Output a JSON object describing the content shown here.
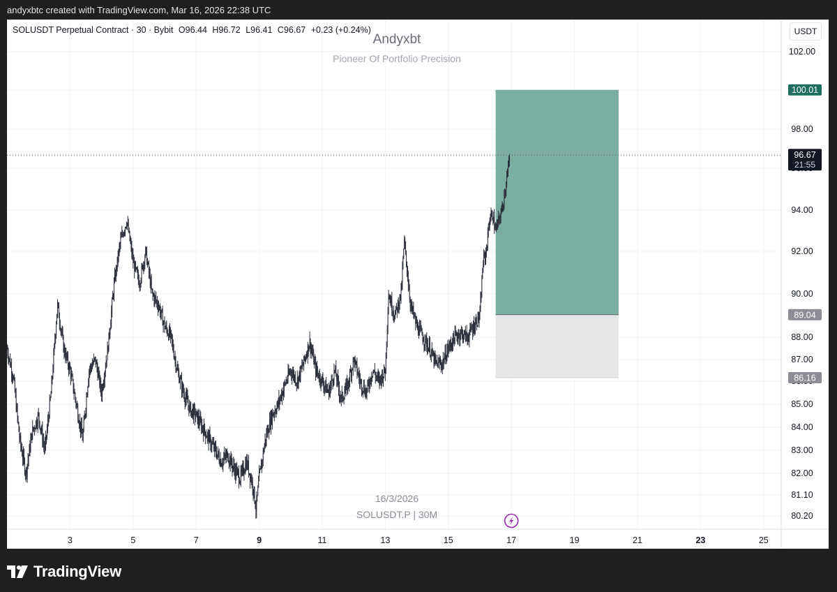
{
  "header": {
    "attribution": "andyxbtc created with TradingView.com, Mar 16, 2026 22:38 UTC"
  },
  "symbol_bar": {
    "symbol": "SOLUSDT Perpetual Contract · 30 · Bybit",
    "open": "O96.44",
    "high": "H96.72",
    "low": "L96.41",
    "close": "C96.67",
    "change": "+0.23 (+0.24%)"
  },
  "currency_button": "USDT",
  "watermark": {
    "title": "Andyxbt",
    "subtitle": "Pioneer Of Portfolio Precision",
    "date": "16/3/2026",
    "symbol_interval": "SOLUSDT.P | 30M"
  },
  "price_labels": {
    "target": "100.01",
    "current": "96.67",
    "countdown": "21:55",
    "entry": "89.04",
    "stop": "86.16"
  },
  "colors": {
    "candles": "#2a2e39",
    "profit_zone": "#7bada1",
    "profit_label": "#1e6e5f",
    "loss_zone": "#e6e6e6",
    "entry_label": "#8c8c94",
    "stop_label": "#8c8c94",
    "current_label": "#131722",
    "flash_icon": "#9c27b0"
  },
  "footer": {
    "brand": "TradingView",
    "logo_icon": "tradingview-logo-icon"
  },
  "chart_data": {
    "type": "candlestick",
    "y_ticks": [
      "80.20",
      "81.10",
      "82.00",
      "83.00",
      "84.00",
      "85.00",
      "86.00",
      "87.00",
      "88.00",
      "90.00",
      "92.00",
      "94.00",
      "96.00",
      "98.00",
      "100.00",
      "102.00"
    ],
    "x_ticks": [
      {
        "label": "3",
        "day": 3,
        "bold": false
      },
      {
        "label": "5",
        "day": 5,
        "bold": false
      },
      {
        "label": "7",
        "day": 7,
        "bold": false
      },
      {
        "label": "9",
        "day": 9,
        "bold": true
      },
      {
        "label": "11",
        "day": 11,
        "bold": false
      },
      {
        "label": "13",
        "day": 13,
        "bold": false
      },
      {
        "label": "15",
        "day": 15,
        "bold": false
      },
      {
        "label": "17",
        "day": 17,
        "bold": false
      },
      {
        "label": "19",
        "day": 19,
        "bold": false
      },
      {
        "label": "21",
        "day": 21,
        "bold": false
      },
      {
        "label": "23",
        "day": 23,
        "bold": true
      },
      {
        "label": "25",
        "day": 25,
        "bold": false
      }
    ],
    "price_path": [
      [
        1.0,
        87.5
      ],
      [
        1.2,
        86.2
      ],
      [
        1.4,
        83.5
      ],
      [
        1.6,
        82.0
      ],
      [
        1.8,
        83.8
      ],
      [
        2.0,
        84.5
      ],
      [
        2.2,
        83.0
      ],
      [
        2.4,
        85.5
      ],
      [
        2.6,
        89.5
      ],
      [
        2.8,
        87.5
      ],
      [
        3.0,
        86.5
      ],
      [
        3.2,
        85.0
      ],
      [
        3.4,
        83.5
      ],
      [
        3.6,
        86.5
      ],
      [
        3.8,
        87.0
      ],
      [
        4.0,
        85.5
      ],
      [
        4.2,
        87.5
      ],
      [
        4.4,
        90.5
      ],
      [
        4.6,
        92.5
      ],
      [
        4.8,
        93.5
      ],
      [
        5.0,
        91.5
      ],
      [
        5.2,
        90.5
      ],
      [
        5.4,
        92.0
      ],
      [
        5.6,
        90.0
      ],
      [
        5.8,
        89.5
      ],
      [
        6.0,
        88.5
      ],
      [
        6.2,
        88.0
      ],
      [
        6.4,
        86.5
      ],
      [
        6.6,
        85.5
      ],
      [
        6.8,
        84.8
      ],
      [
        7.0,
        84.5
      ],
      [
        7.2,
        84.0
      ],
      [
        7.4,
        83.5
      ],
      [
        7.6,
        83.0
      ],
      [
        7.8,
        82.5
      ],
      [
        8.0,
        82.8
      ],
      [
        8.2,
        82.2
      ],
      [
        8.4,
        81.8
      ],
      [
        8.6,
        82.5
      ],
      [
        8.8,
        81.5
      ],
      [
        8.9,
        80.5
      ],
      [
        9.0,
        81.8
      ],
      [
        9.2,
        83.5
      ],
      [
        9.4,
        84.5
      ],
      [
        9.6,
        85.0
      ],
      [
        9.8,
        85.8
      ],
      [
        10.0,
        86.5
      ],
      [
        10.2,
        86.0
      ],
      [
        10.4,
        86.8
      ],
      [
        10.6,
        87.8
      ],
      [
        10.8,
        86.5
      ],
      [
        11.0,
        86.0
      ],
      [
        11.2,
        85.5
      ],
      [
        11.4,
        86.5
      ],
      [
        11.6,
        85.2
      ],
      [
        11.8,
        85.8
      ],
      [
        12.0,
        87.0
      ],
      [
        12.2,
        86.0
      ],
      [
        12.4,
        85.5
      ],
      [
        12.6,
        86.5
      ],
      [
        12.8,
        86.0
      ],
      [
        13.0,
        86.5
      ],
      [
        13.1,
        90.0
      ],
      [
        13.3,
        89.0
      ],
      [
        13.5,
        90.0
      ],
      [
        13.6,
        92.5
      ],
      [
        13.8,
        89.5
      ],
      [
        14.0,
        88.5
      ],
      [
        14.2,
        88.0
      ],
      [
        14.4,
        87.5
      ],
      [
        14.6,
        86.8
      ],
      [
        14.8,
        86.8
      ],
      [
        15.0,
        87.5
      ],
      [
        15.2,
        88.0
      ],
      [
        15.4,
        88.2
      ],
      [
        15.6,
        88.0
      ],
      [
        15.8,
        88.5
      ],
      [
        16.0,
        89.0
      ],
      [
        16.1,
        91.5
      ],
      [
        16.2,
        92.0
      ],
      [
        16.3,
        93.5
      ],
      [
        16.4,
        93.8
      ],
      [
        16.5,
        93.0
      ],
      [
        16.6,
        93.5
      ],
      [
        16.7,
        94.0
      ],
      [
        16.8,
        95.0
      ],
      [
        16.9,
        96.0
      ],
      [
        16.95,
        96.67
      ]
    ],
    "position": {
      "type": "long",
      "target": 100.01,
      "entry": 89.04,
      "stop": 86.16,
      "current": 96.67,
      "start_day": 16.5,
      "end_day": 20.4
    }
  }
}
